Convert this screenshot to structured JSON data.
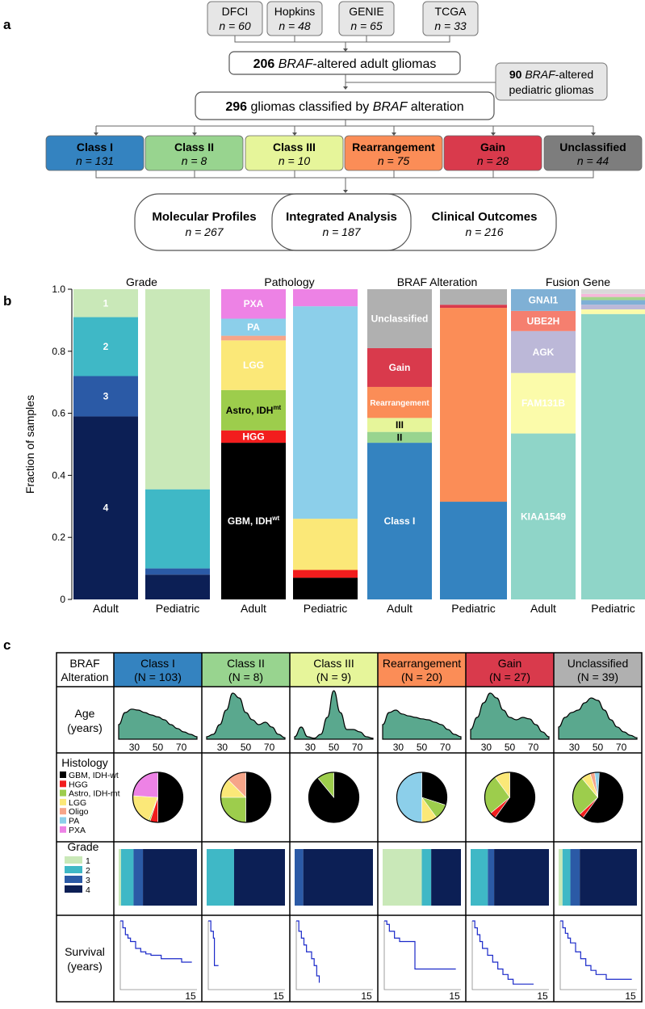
{
  "panel_a": {
    "label": "a",
    "sources": [
      {
        "name": "DFCI",
        "n": "n = 60"
      },
      {
        "name": "Hopkins",
        "n": "n = 48"
      },
      {
        "name": "GENIE",
        "n": "n = 65"
      },
      {
        "name": "TCGA",
        "n": "n = 33"
      }
    ],
    "adult_box": {
      "count": "206",
      "italic": "BRAF",
      "rest": "-altered adult gliomas"
    },
    "pediatric_box": {
      "count": "90",
      "italic": "BRAF",
      "line1_rest": "-altered",
      "line2": "pediatric gliomas"
    },
    "classified_box": {
      "count": "296",
      "mid": " gliomas classified by ",
      "italic": "BRAF",
      "rest": " alteration"
    },
    "classes": [
      {
        "name": "Class I",
        "n": "n = 131",
        "color": "#3483c0"
      },
      {
        "name": "Class II",
        "n": "n = 8",
        "color": "#98d48f"
      },
      {
        "name": "Class III",
        "n": "n = 10",
        "color": "#e6f59a"
      },
      {
        "name": "Rearrangement",
        "n": "n = 75",
        "color": "#fb8d57"
      },
      {
        "name": "Gain",
        "n": "n = 28",
        "color": "#d93a4c"
      },
      {
        "name": "Unclassified",
        "n": "n = 44",
        "color": "#7d7d7d"
      }
    ],
    "analyses": [
      {
        "name": "Molecular Profiles",
        "n": "n = 267"
      },
      {
        "name": "Integrated Analysis",
        "n": "n = 187"
      },
      {
        "name": "Clinical Outcomes",
        "n": "n = 216"
      }
    ]
  },
  "panel_b_label": "b",
  "panel_c_label": "c",
  "chart_data": [
    {
      "type": "bar",
      "stacked": true,
      "title": "Grade",
      "ylabel": "Fraction of samples",
      "ylim": [
        0,
        1
      ],
      "yticks": [
        "0",
        "0.2",
        "0.4",
        "0.6",
        "0.8",
        "1.0"
      ],
      "categories": [
        "Adult",
        "Pediatric"
      ],
      "series": [
        {
          "name": "4",
          "color": "#0c1f55",
          "values": [
            0.59,
            0.08
          ],
          "label_adult": "4"
        },
        {
          "name": "3",
          "color": "#2b5aa6",
          "values": [
            0.13,
            0.02
          ],
          "label_adult": "3"
        },
        {
          "name": "2",
          "color": "#3fb8c6",
          "values": [
            0.19,
            0.255
          ],
          "label_adult": "2"
        },
        {
          "name": "1",
          "color": "#c9e8b8",
          "values": [
            0.09,
            0.645
          ],
          "label_adult": "1"
        }
      ]
    },
    {
      "type": "bar",
      "stacked": true,
      "title": "Pathology",
      "categories": [
        "Adult",
        "Pediatric"
      ],
      "series": [
        {
          "name": "GBM, IDH-wt",
          "color": "#000000",
          "values": [
            0.505,
            0.07
          ],
          "label_adult": "GBM, IDH",
          "label_sup": "wt"
        },
        {
          "name": "HGG",
          "color": "#f21d1d",
          "values": [
            0.04,
            0.025
          ],
          "label_adult": "HGG"
        },
        {
          "name": "Astro, IDH-mt",
          "color": "#9dcd4c",
          "values": [
            0.13,
            0.0
          ],
          "label_adult": "Astro, IDH",
          "label_sup": "mt"
        },
        {
          "name": "LGG",
          "color": "#fbe878",
          "values": [
            0.16,
            0.165
          ],
          "label_adult": "LGG"
        },
        {
          "name": "Oligo",
          "color": "#f6a589",
          "values": [
            0.015,
            0.0
          ],
          "label_adult": ""
        },
        {
          "name": "PA",
          "color": "#8ccfea",
          "values": [
            0.055,
            0.685
          ],
          "label_adult": "PA"
        },
        {
          "name": "PXA",
          "color": "#ed82e5",
          "values": [
            0.095,
            0.055
          ],
          "label_adult": "PXA"
        }
      ]
    },
    {
      "type": "bar",
      "stacked": true,
      "title": "BRAF Alteration",
      "categories": [
        "Adult",
        "Pediatric"
      ],
      "series": [
        {
          "name": "Class I",
          "color": "#3483c0",
          "values": [
            0.505,
            0.315
          ],
          "label_adult": "Class I"
        },
        {
          "name": "Class II",
          "color": "#98d48f",
          "values": [
            0.035,
            0.0
          ],
          "label_adult": "II"
        },
        {
          "name": "Class III",
          "color": "#e6f59a",
          "values": [
            0.045,
            0.0
          ],
          "label_adult": "III"
        },
        {
          "name": "Rearrangement",
          "color": "#fb8d57",
          "values": [
            0.1,
            0.625
          ],
          "label_adult": "Rearrangement"
        },
        {
          "name": "Gain",
          "color": "#d93a4c",
          "values": [
            0.125,
            0.01
          ],
          "label_adult": "Gain"
        },
        {
          "name": "Unclassified",
          "color": "#b0b0b0",
          "values": [
            0.19,
            0.05
          ],
          "label_adult": "Unclassified"
        }
      ]
    },
    {
      "type": "bar",
      "stacked": true,
      "title": "Fusion Gene",
      "categories": [
        "Adult",
        "Pediatric"
      ],
      "series": [
        {
          "name": "KIAA1549",
          "color": "#8fd5c8",
          "values": [
            0.535,
            0.92
          ],
          "label_adult": "KIAA1549"
        },
        {
          "name": "FAM131B",
          "color": "#fbfbaa",
          "values": [
            0.195,
            0.015
          ],
          "label_adult": "FAM131B"
        },
        {
          "name": "AGK",
          "color": "#bcb8d8",
          "values": [
            0.135,
            0.015
          ],
          "label_adult": "AGK"
        },
        {
          "name": "UBE2H",
          "color": "#f57f6f",
          "values": [
            0.065,
            0.0
          ],
          "label_adult": "UBE2H"
        },
        {
          "name": "GNAI1",
          "color": "#7fb0d5",
          "values": [
            0.07,
            0.015
          ],
          "label_adult": "GNAI1"
        },
        {
          "name": "other-green",
          "color": "#a4d58a",
          "values": [
            0.0,
            0.01
          ],
          "label_adult": ""
        },
        {
          "name": "other-pink",
          "color": "#f6b7da",
          "values": [
            0.0,
            0.01
          ],
          "label_adult": ""
        },
        {
          "name": "other-grey",
          "color": "#d9d9d9",
          "values": [
            0.0,
            0.015
          ],
          "label_adult": ""
        }
      ]
    }
  ],
  "panel_c": {
    "row_headers": {
      "braf": [
        "BRAF",
        "Alteration"
      ],
      "age": [
        "Age",
        "(years)"
      ],
      "histology": "Histology",
      "grade": "Grade",
      "survival": [
        "Survival",
        "(years)"
      ]
    },
    "histology_legend": [
      {
        "label": "GBM, IDH-wt",
        "color": "#000000"
      },
      {
        "label": "HGG",
        "color": "#f21d1d"
      },
      {
        "label": "Astro, IDH-mt",
        "color": "#9dcd4c"
      },
      {
        "label": "LGG",
        "color": "#fbe878"
      },
      {
        "label": "Oligo",
        "color": "#f6a589"
      },
      {
        "label": "PA",
        "color": "#8ccfea"
      },
      {
        "label": "PXA",
        "color": "#ed82e5"
      }
    ],
    "grade_legend": [
      {
        "label": "1",
        "color": "#c9e8b8"
      },
      {
        "label": "2",
        "color": "#3fb8c6"
      },
      {
        "label": "3",
        "color": "#2b5aa6"
      },
      {
        "label": "4",
        "color": "#0c1f55"
      }
    ],
    "age_ticks": [
      "30",
      "50",
      "70"
    ],
    "survival_tick": "15",
    "columns": [
      {
        "name": "Class I",
        "n": "(N = 103)",
        "color": "#3483c0",
        "pie": [
          0.5,
          0.05,
          0.01,
          0.2,
          0.0,
          0.0,
          0.24
        ],
        "grade": [
          0.03,
          0.16,
          0.12,
          0.69
        ],
        "age_density": [
          0.3,
          0.55,
          0.62,
          0.6,
          0.55,
          0.5,
          0.46,
          0.4,
          0.3,
          0.22,
          0.15,
          0.1,
          0.05
        ],
        "survival": [
          [
            0,
            1
          ],
          [
            0.5,
            0.9
          ],
          [
            1,
            0.8
          ],
          [
            1.5,
            0.75
          ],
          [
            2,
            0.7
          ],
          [
            3,
            0.6
          ],
          [
            4,
            0.55
          ],
          [
            5,
            0.52
          ],
          [
            6,
            0.5
          ],
          [
            8,
            0.45
          ],
          [
            10,
            0.45
          ],
          [
            12,
            0.4
          ],
          [
            14,
            0.4
          ]
        ]
      },
      {
        "name": "Class II",
        "n": "(N = 8)",
        "color": "#98d48f",
        "pie": [
          0.5,
          0.0,
          0.25,
          0.125,
          0.125,
          0.0,
          0.0
        ],
        "grade": [
          0.0,
          0.35,
          0.0,
          0.65
        ],
        "age_density": [
          0.05,
          0.1,
          0.3,
          0.6,
          0.95,
          0.85,
          0.55,
          0.4,
          0.3,
          0.35,
          0.25,
          0.1,
          0.03
        ],
        "survival": [
          [
            0,
            1
          ],
          [
            0.5,
            0.85
          ],
          [
            1,
            0.75
          ],
          [
            1.2,
            0.35
          ],
          [
            2,
            0.35
          ]
        ]
      },
      {
        "name": "Class III",
        "n": "(N = 9)",
        "color": "#e6f59a",
        "pie": [
          0.89,
          0.0,
          0.11,
          0.0,
          0.0,
          0.0,
          0.0
        ],
        "grade": [
          0.0,
          0.0,
          0.11,
          0.89
        ],
        "age_density": [
          0.05,
          0.25,
          0.05,
          0.02,
          0.1,
          0.45,
          1.0,
          0.55,
          0.2,
          0.2,
          0.15,
          0.05,
          0.02
        ],
        "survival": [
          [
            0,
            1
          ],
          [
            0.5,
            0.85
          ],
          [
            1,
            0.75
          ],
          [
            1.5,
            0.65
          ],
          [
            2,
            0.55
          ],
          [
            3,
            0.45
          ],
          [
            3.5,
            0.35
          ],
          [
            4,
            0.2
          ],
          [
            4.5,
            0.1
          ]
        ]
      },
      {
        "name": "Rearrangement",
        "n": "(N = 20)",
        "color": "#fb8d57",
        "pie": [
          0.3,
          0.0,
          0.1,
          0.1,
          0.0,
          0.5,
          0.0
        ],
        "grade": [
          0.5,
          0.12,
          0.0,
          0.38
        ],
        "age_density": [
          0.3,
          0.55,
          0.6,
          0.52,
          0.48,
          0.45,
          0.42,
          0.4,
          0.35,
          0.3,
          0.2,
          0.1,
          0.05
        ],
        "survival": [
          [
            0,
            1
          ],
          [
            0.5,
            0.95
          ],
          [
            1,
            0.85
          ],
          [
            2,
            0.75
          ],
          [
            3,
            0.7
          ],
          [
            5,
            0.7
          ],
          [
            6,
            0.3
          ],
          [
            9,
            0.3
          ],
          [
            14,
            0.3
          ]
        ]
      },
      {
        "name": "Gain",
        "n": "(N = 27)",
        "color": "#d93a4c",
        "pie": [
          0.6,
          0.04,
          0.26,
          0.1,
          0.0,
          0.0,
          0.0
        ],
        "grade": [
          0.0,
          0.22,
          0.08,
          0.7
        ],
        "age_density": [
          0.2,
          0.45,
          0.75,
          0.95,
          0.85,
          0.6,
          0.45,
          0.4,
          0.45,
          0.42,
          0.3,
          0.15,
          0.05
        ],
        "survival": [
          [
            0,
            1
          ],
          [
            0.5,
            0.9
          ],
          [
            1,
            0.8
          ],
          [
            1.5,
            0.7
          ],
          [
            2,
            0.6
          ],
          [
            3,
            0.5
          ],
          [
            4,
            0.4
          ],
          [
            5,
            0.3
          ],
          [
            6,
            0.22
          ],
          [
            7,
            0.15
          ],
          [
            8,
            0.08
          ],
          [
            12,
            0.08
          ]
        ]
      },
      {
        "name": "Unclassified",
        "n": "(N = 39)",
        "color": "#b0b0b0",
        "pie": [
          0.6,
          0.03,
          0.26,
          0.06,
          0.03,
          0.03,
          0.0
        ],
        "grade": [
          0.05,
          0.1,
          0.12,
          0.73
        ],
        "age_density": [
          0.25,
          0.45,
          0.55,
          0.6,
          0.75,
          0.85,
          0.8,
          0.6,
          0.4,
          0.25,
          0.15,
          0.08,
          0.03
        ],
        "survival": [
          [
            0,
            1
          ],
          [
            0.5,
            0.9
          ],
          [
            1,
            0.82
          ],
          [
            1.5,
            0.75
          ],
          [
            2,
            0.68
          ],
          [
            3,
            0.55
          ],
          [
            4,
            0.45
          ],
          [
            5,
            0.35
          ],
          [
            6,
            0.28
          ],
          [
            7,
            0.22
          ],
          [
            9,
            0.15
          ],
          [
            14,
            0.15
          ]
        ]
      }
    ]
  }
}
